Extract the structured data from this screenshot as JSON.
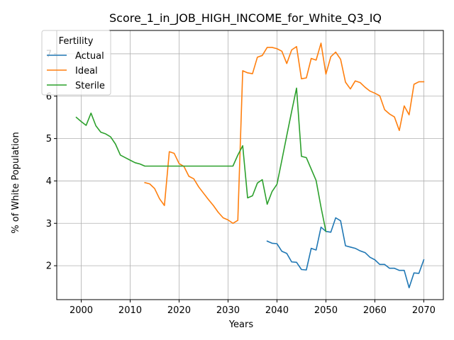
{
  "chart_data": {
    "type": "line",
    "title": "Score_1_in_JOB_HIGH_INCOME_for_White_Q3_IQ",
    "xlabel": "Years",
    "ylabel": "% of White Population",
    "xlim": [
      1995,
      2074
    ],
    "ylim": [
      1.2,
      7.55
    ],
    "xticks": [
      2000,
      2010,
      2020,
      2030,
      2040,
      2050,
      2060,
      2070
    ],
    "yticks": [
      2,
      3,
      4,
      5,
      6,
      7
    ],
    "grid": true,
    "legend": {
      "title": "Fertility",
      "placement": "top-left"
    },
    "colors": {
      "Actual": "#1f77b4",
      "Ideal": "#ff7f0e",
      "Sterile": "#2ca02c"
    },
    "series": [
      {
        "name": "Actual",
        "x": [
          2038,
          2039,
          2040,
          2041,
          2042,
          2043,
          2044,
          2045,
          2046,
          2047,
          2048,
          2049,
          2050,
          2051,
          2052,
          2053,
          2054,
          2055,
          2056,
          2057,
          2058,
          2059,
          2060,
          2061,
          2062,
          2063,
          2064,
          2065,
          2066,
          2067,
          2068,
          2069,
          2070
        ],
        "y": [
          2.58,
          2.53,
          2.52,
          2.34,
          2.29,
          2.09,
          2.08,
          1.91,
          1.9,
          2.41,
          2.37,
          2.91,
          2.81,
          2.79,
          3.13,
          3.06,
          2.47,
          2.44,
          2.41,
          2.35,
          2.31,
          2.2,
          2.14,
          2.03,
          2.03,
          1.94,
          1.94,
          1.89,
          1.89,
          1.48,
          1.83,
          1.82,
          2.14
        ]
      },
      {
        "name": "Ideal",
        "x": [
          2013,
          2014,
          2015,
          2016,
          2017,
          2018,
          2019,
          2020,
          2021,
          2022,
          2023,
          2024,
          2025,
          2026,
          2027,
          2028,
          2029,
          2030,
          2031,
          2032,
          2033,
          2034,
          2035,
          2036,
          2037,
          2038,
          2039,
          2040,
          2041,
          2042,
          2043,
          2044,
          2045,
          2046,
          2047,
          2048,
          2049,
          2050,
          2051,
          2052,
          2053,
          2054,
          2055,
          2056,
          2057,
          2058,
          2059,
          2060,
          2061,
          2062,
          2063,
          2064,
          2065,
          2066,
          2067,
          2068,
          2069,
          2070
        ],
        "y": [
          3.96,
          3.93,
          3.82,
          3.58,
          3.42,
          4.69,
          4.65,
          4.41,
          4.34,
          4.11,
          4.05,
          3.86,
          3.71,
          3.56,
          3.42,
          3.26,
          3.13,
          3.08,
          3.0,
          3.07,
          6.6,
          6.55,
          6.53,
          6.92,
          6.96,
          7.15,
          7.15,
          7.12,
          7.06,
          6.77,
          7.09,
          7.17,
          6.41,
          6.43,
          6.89,
          6.85,
          7.25,
          6.52,
          6.93,
          7.04,
          6.87,
          6.33,
          6.17,
          6.36,
          6.32,
          6.21,
          6.12,
          6.07,
          6.01,
          5.68,
          5.58,
          5.51,
          5.19,
          5.77,
          5.56,
          6.28,
          6.34,
          6.34
        ]
      },
      {
        "name": "Sterile",
        "x": [
          1999,
          2000,
          2001,
          2002,
          2003,
          2004,
          2005,
          2006,
          2007,
          2008,
          2009,
          2010,
          2011,
          2012,
          2013,
          2014,
          2015,
          2016,
          2017,
          2018,
          2019,
          2020,
          2021,
          2022,
          2023,
          2024,
          2025,
          2026,
          2027,
          2028,
          2029,
          2030,
          2031,
          2032,
          2033,
          2034,
          2035,
          2036,
          2037,
          2038,
          2039,
          2040,
          2041,
          2042,
          2043,
          2044,
          2045,
          2046,
          2047,
          2048,
          2049,
          2050
        ],
        "y": [
          5.5,
          5.4,
          5.31,
          5.6,
          5.3,
          5.15,
          5.11,
          5.04,
          4.87,
          4.61,
          4.55,
          4.49,
          4.43,
          4.4,
          4.35,
          4.35,
          4.35,
          4.35,
          4.35,
          4.35,
          4.35,
          4.35,
          4.35,
          4.35,
          4.35,
          4.35,
          4.35,
          4.35,
          4.35,
          4.35,
          4.35,
          4.35,
          4.35,
          4.61,
          4.83,
          3.6,
          3.65,
          3.95,
          4.03,
          3.45,
          3.75,
          3.92,
          4.49,
          5.07,
          5.64,
          6.19,
          4.58,
          4.55,
          4.28,
          4.01,
          3.38,
          2.81
        ]
      }
    ]
  }
}
